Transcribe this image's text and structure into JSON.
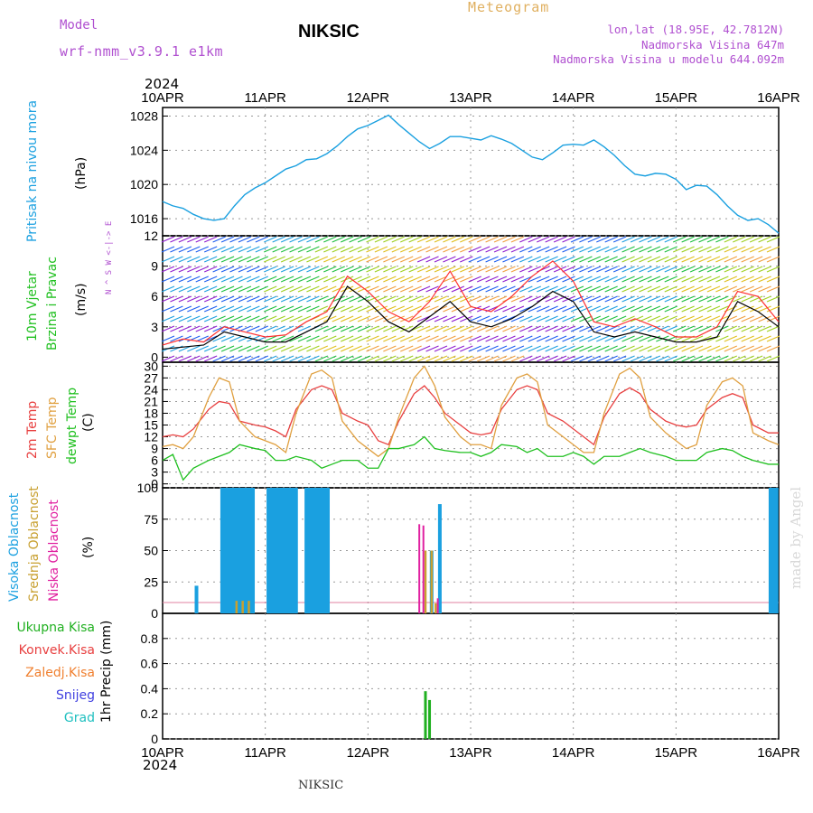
{
  "header": {
    "model_label": "Model",
    "model_value": "wrf-nmm_v3.9.1 e1km",
    "station": "NIKSIC",
    "meteogram_label": "Meteogram",
    "lonlat": "lon,lat (18.95E, 42.7812N)",
    "elevation": "Nadmorska Visina 647m",
    "model_elevation": "Nadmorska Visina u modelu 644.092m",
    "year_top": "2024",
    "year_bottom": "2024",
    "footer": "NIKSIC",
    "credit": "made by Angel"
  },
  "colors": {
    "pressure": "#1aa0e0",
    "temp2m": "#e84040",
    "sfc_temp": "#e0a040",
    "dewpoint": "#20c020",
    "high_cloud": "#1aa0e0",
    "mid_cloud": "#c8a030",
    "low_cloud": "#e020a0",
    "total_precip": "#20b020",
    "convective_precip": "#e84040",
    "freezing_precip": "#f08030",
    "snow": "#4040e0",
    "graupel": "#20c0c0",
    "model_label": "#b050d0",
    "meteogram_label": "#e0b060",
    "wind_speed": "#000000",
    "wind_gust": "#ff3030"
  },
  "chart_data": [
    {
      "type": "line",
      "panel": "pressure",
      "ylabel_name": "Pritisak na nivou mora",
      "ylabel_unit": "(hPa)",
      "x_ticks": [
        "10APR",
        "11APR",
        "12APR",
        "13APR",
        "14APR",
        "15APR",
        "16APR"
      ],
      "ylim": [
        1014,
        1029
      ],
      "yticks": [
        1016,
        1020,
        1024,
        1028
      ],
      "grid": true,
      "series": [
        {
          "x": [
            0,
            0.1,
            0.2,
            0.3,
            0.4,
            0.5,
            0.6,
            0.7,
            0.8,
            0.9,
            1.0,
            1.1,
            1.2,
            1.3,
            1.4,
            1.5,
            1.6,
            1.7,
            1.8,
            1.9,
            2.0,
            2.1,
            2.2,
            2.3,
            2.4,
            2.5,
            2.6,
            2.7,
            2.8,
            2.9,
            3.0,
            3.1,
            3.2,
            3.3,
            3.4,
            3.5,
            3.6,
            3.7,
            3.8,
            3.9,
            4.0,
            4.1,
            4.2,
            4.3,
            4.4,
            4.5,
            4.6,
            4.7,
            4.8,
            4.9,
            5.0,
            5.1,
            5.2,
            5.3,
            5.4,
            5.5,
            5.6,
            5.7,
            5.8,
            5.9,
            6.0
          ],
          "values": [
            1018.0,
            1017.5,
            1017.2,
            1016.5,
            1016.0,
            1015.8,
            1016.0,
            1017.5,
            1018.8,
            1019.6,
            1020.2,
            1021.0,
            1021.8,
            1022.2,
            1022.9,
            1023.0,
            1023.6,
            1024.5,
            1025.6,
            1026.5,
            1026.9,
            1027.5,
            1028.1,
            1027.0,
            1026.0,
            1025.0,
            1024.2,
            1024.8,
            1025.6,
            1025.6,
            1025.4,
            1025.2,
            1025.7,
            1025.3,
            1024.8,
            1024.0,
            1023.2,
            1022.9,
            1023.7,
            1024.6,
            1024.7,
            1024.6,
            1025.2,
            1024.4,
            1023.4,
            1022.2,
            1021.2,
            1021.0,
            1021.3,
            1021.2,
            1020.6,
            1019.4,
            1019.9,
            1019.8,
            1018.8,
            1017.5,
            1016.4,
            1015.8,
            1016.0,
            1015.3,
            1014.3
          ]
        }
      ]
    },
    {
      "type": "line",
      "panel": "wind",
      "ylabel_name1": "10m Vjetar",
      "ylabel_name2": "Brzina i Pravac",
      "ylabel_unit": "(m/s)",
      "compass": "N ^ S  W <-|-> E",
      "ylim": [
        -0.5,
        12
      ],
      "yticks": [
        0,
        3,
        6,
        9,
        12
      ],
      "grid": true,
      "series": [
        {
          "name": "speed",
          "x": [
            0,
            0.2,
            0.4,
            0.6,
            0.8,
            1.0,
            1.2,
            1.4,
            1.6,
            1.8,
            2.0,
            2.2,
            2.4,
            2.6,
            2.8,
            3.0,
            3.2,
            3.4,
            3.6,
            3.8,
            4.0,
            4.2,
            4.4,
            4.6,
            4.8,
            5.0,
            5.2,
            5.4,
            5.6,
            5.8,
            6.0
          ],
          "values": [
            0.8,
            1.0,
            1.2,
            2.5,
            2.0,
            1.5,
            1.5,
            2.5,
            3.5,
            7.0,
            5.5,
            3.5,
            2.5,
            4.0,
            5.5,
            3.5,
            3.0,
            3.8,
            5.0,
            6.5,
            5.5,
            2.5,
            2.0,
            2.5,
            2.0,
            1.5,
            1.5,
            2.0,
            5.5,
            4.5,
            3.0
          ]
        },
        {
          "name": "gust",
          "x": [
            0,
            0.2,
            0.4,
            0.6,
            0.8,
            1.0,
            1.2,
            1.4,
            1.6,
            1.8,
            2.0,
            2.2,
            2.4,
            2.6,
            2.8,
            3.0,
            3.2,
            3.4,
            3.6,
            3.8,
            4.0,
            4.2,
            4.4,
            4.6,
            4.8,
            5.0,
            5.2,
            5.4,
            5.6,
            5.8,
            6.0
          ],
          "values": [
            1.2,
            1.8,
            1.5,
            3.0,
            2.5,
            2.0,
            2.2,
            3.5,
            4.5,
            8.0,
            6.5,
            4.5,
            3.5,
            5.5,
            8.5,
            5.0,
            4.5,
            6.0,
            8.0,
            9.5,
            7.5,
            3.5,
            3.0,
            3.8,
            3.0,
            2.0,
            2.0,
            3.0,
            6.5,
            6.0,
            3.5
          ]
        }
      ]
    },
    {
      "type": "line",
      "panel": "temperature",
      "ylabel_name1": "2m Temp",
      "ylabel_name2": "SFC Temp",
      "ylabel_name3": "dewpt Temp",
      "ylabel_unit": "(C)",
      "ylim": [
        -1,
        31
      ],
      "yticks": [
        0,
        3,
        6,
        9,
        12,
        15,
        18,
        21,
        24,
        27,
        30
      ],
      "grid": true,
      "series": [
        {
          "name": "2m Temp",
          "x": [
            0,
            0.1,
            0.2,
            0.3,
            0.45,
            0.55,
            0.65,
            0.75,
            0.9,
            1.0,
            1.1,
            1.2,
            1.3,
            1.45,
            1.55,
            1.65,
            1.75,
            1.9,
            2.0,
            2.1,
            2.2,
            2.3,
            2.45,
            2.55,
            2.65,
            2.75,
            2.9,
            3.0,
            3.1,
            3.2,
            3.3,
            3.45,
            3.55,
            3.65,
            3.75,
            3.9,
            4.0,
            4.1,
            4.2,
            4.3,
            4.45,
            4.55,
            4.65,
            4.75,
            4.9,
            5.0,
            5.1,
            5.2,
            5.3,
            5.45,
            5.55,
            5.65,
            5.75,
            5.9,
            6.0
          ],
          "values": [
            12,
            12.5,
            12.0,
            14,
            19,
            21,
            20.5,
            16,
            15,
            14.5,
            13.5,
            12,
            19,
            24,
            25,
            24,
            18,
            16,
            15,
            11,
            10,
            16,
            23,
            25,
            22,
            18,
            15,
            13,
            12.5,
            13,
            19,
            24,
            25,
            24,
            18,
            16,
            14,
            12,
            10,
            17,
            23,
            24.5,
            23,
            19,
            16,
            15,
            14.5,
            15,
            19,
            22,
            23,
            22,
            15,
            13,
            13
          ]
        },
        {
          "name": "SFC Temp",
          "x": [
            0,
            0.1,
            0.2,
            0.3,
            0.45,
            0.55,
            0.65,
            0.75,
            0.9,
            1.0,
            1.1,
            1.2,
            1.3,
            1.45,
            1.55,
            1.65,
            1.75,
            1.9,
            2.0,
            2.1,
            2.2,
            2.3,
            2.45,
            2.55,
            2.65,
            2.75,
            2.9,
            3.0,
            3.1,
            3.2,
            3.3,
            3.45,
            3.55,
            3.65,
            3.75,
            3.9,
            4.0,
            4.1,
            4.2,
            4.3,
            4.45,
            4.55,
            4.65,
            4.75,
            4.9,
            5.0,
            5.1,
            5.2,
            5.3,
            5.45,
            5.55,
            5.65,
            5.75,
            5.9,
            6.0
          ],
          "values": [
            9.5,
            10,
            9,
            12,
            22,
            27,
            26,
            16,
            12,
            11,
            10,
            8,
            18,
            28,
            29,
            27,
            16,
            11,
            9,
            7,
            9,
            17,
            27,
            30,
            25,
            17,
            12,
            10,
            10,
            9,
            20,
            27,
            28,
            26,
            15,
            12,
            10,
            8,
            8,
            18,
            28,
            29.5,
            27,
            17,
            13,
            11,
            9,
            10,
            20,
            26,
            27,
            25,
            13,
            11,
            10
          ]
        },
        {
          "name": "dewpt Temp",
          "x": [
            0,
            0.1,
            0.2,
            0.3,
            0.45,
            0.55,
            0.65,
            0.75,
            0.9,
            1.0,
            1.1,
            1.2,
            1.3,
            1.45,
            1.55,
            1.65,
            1.75,
            1.9,
            2.0,
            2.1,
            2.2,
            2.3,
            2.45,
            2.55,
            2.65,
            2.75,
            2.9,
            3.0,
            3.1,
            3.2,
            3.3,
            3.45,
            3.55,
            3.65,
            3.75,
            3.9,
            4.0,
            4.1,
            4.2,
            4.3,
            4.45,
            4.55,
            4.65,
            4.75,
            4.9,
            5.0,
            5.1,
            5.2,
            5.3,
            5.45,
            5.55,
            5.65,
            5.75,
            5.9,
            6.0
          ],
          "values": [
            6,
            7.5,
            1,
            4,
            6,
            7,
            8,
            10,
            9,
            8.5,
            6,
            6,
            7,
            6,
            4,
            5,
            6,
            6,
            4,
            4,
            9,
            9,
            10,
            12,
            9,
            8.5,
            8,
            8,
            7,
            8,
            10,
            9.5,
            8,
            9,
            7,
            7,
            8,
            7,
            5,
            7,
            7,
            8,
            9,
            8,
            7,
            6,
            6,
            6,
            8,
            9,
            8.5,
            7,
            6,
            5,
            5
          ]
        }
      ]
    },
    {
      "type": "bar",
      "panel": "cloud",
      "ylabel_name1": "Visoka Oblacnost",
      "ylabel_name2": "Srednja Oblacnost",
      "ylabel_name3": "Niska Oblacnost",
      "ylabel_unit": "(%)",
      "ylim": [
        0,
        100
      ],
      "yticks": [
        0,
        25,
        50,
        75,
        100
      ],
      "grid": true,
      "series": [
        {
          "name": "Visoka Oblacnost",
          "x": [
            0.33,
            0.58,
            0.61,
            0.64,
            0.67,
            0.7,
            0.73,
            0.76,
            0.79,
            0.82,
            0.85,
            0.88,
            1.03,
            1.06,
            1.09,
            1.12,
            1.15,
            1.18,
            1.21,
            1.24,
            1.27,
            1.3,
            1.4,
            1.43,
            1.46,
            1.49,
            1.52,
            1.55,
            1.58,
            1.61,
            2.62,
            2.7,
            5.92,
            5.95,
            5.98
          ],
          "values": [
            22,
            100,
            100,
            100,
            100,
            100,
            100,
            100,
            100,
            100,
            100,
            100,
            100,
            100,
            100,
            100,
            100,
            100,
            100,
            100,
            100,
            100,
            100,
            100,
            100,
            100,
            100,
            100,
            100,
            100,
            50,
            87,
            100,
            100,
            100
          ]
        },
        {
          "name": "Srednja Oblacnost",
          "x": [
            0.72,
            0.78,
            0.84,
            2.56,
            2.62,
            2.66
          ],
          "values": [
            10,
            10,
            10,
            50,
            50,
            8
          ]
        },
        {
          "name": "Niska Oblacnost",
          "x": [
            2.5,
            2.54,
            2.68
          ],
          "values": [
            71,
            70,
            12
          ]
        }
      ]
    },
    {
      "type": "bar",
      "panel": "precipitation",
      "ylabel_name1": "Ukupna Kisa",
      "ylabel_name2": "Konvek.Kisa",
      "ylabel_name3": "Zaledj.Kisa",
      "ylabel_name4": "Snijeg",
      "ylabel_name5": "Grad",
      "ylabel_unit": "1hr Precip (mm)",
      "ylim": [
        0,
        1.0
      ],
      "yticks": [
        0,
        0.2,
        0.4,
        0.6,
        0.8
      ],
      "ytick_labels": [
        "0",
        "0.2",
        "0.4",
        "0.6",
        "0.8"
      ],
      "grid": true,
      "series": [
        {
          "name": "Ukupna Kisa",
          "x": [
            2.56,
            2.6
          ],
          "values": [
            0.38,
            0.31
          ]
        }
      ]
    }
  ]
}
